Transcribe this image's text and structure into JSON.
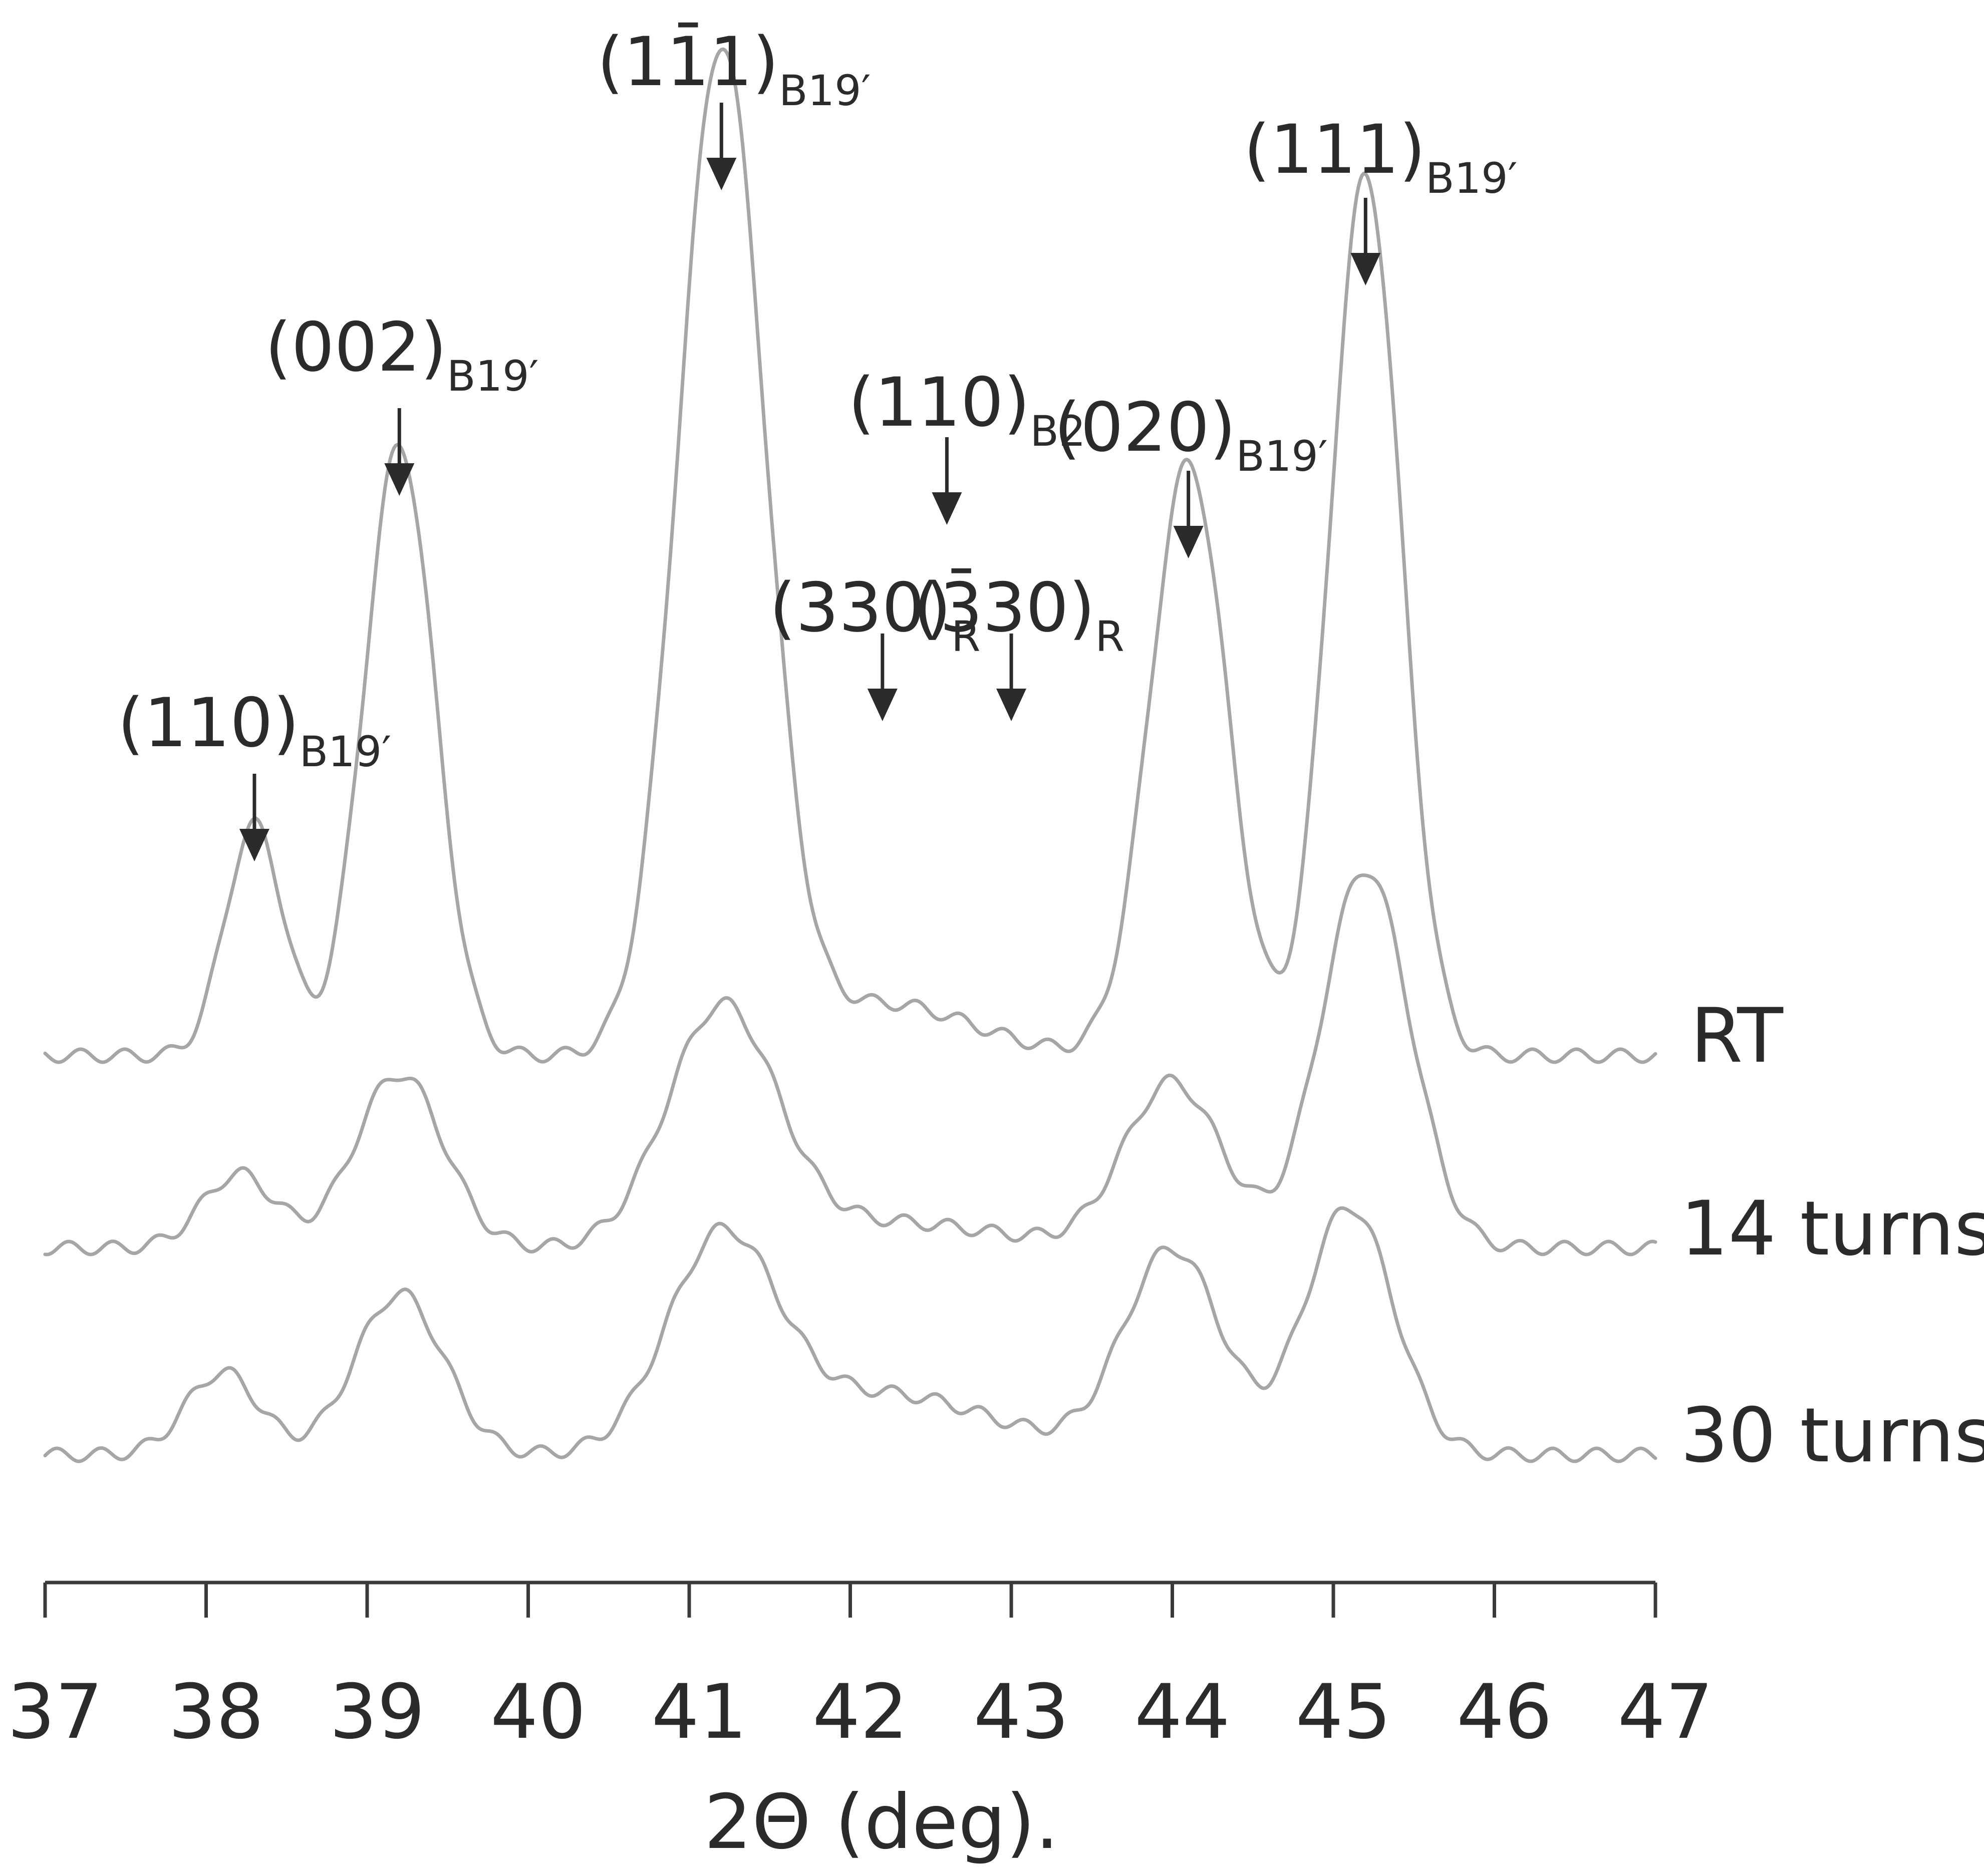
{
  "chart_data": {
    "type": "line",
    "title": "",
    "xlabel": "2Θ (deg).",
    "ylabel": "",
    "xlim": [
      37,
      47
    ],
    "x_ticks": [
      "37",
      "38",
      "39",
      "40",
      "41",
      "42",
      "43",
      "44",
      "45",
      "46",
      "47"
    ],
    "grid": false,
    "colors": {
      "curve": "#a6a6a6",
      "text": "#2b2b2b",
      "axis": "#3a3a3a"
    },
    "series": [
      {
        "name": "RT",
        "peaks": [
          {
            "x": 38.3,
            "height": 0.53
          },
          {
            "x": 39.2,
            "height": 1.4
          },
          {
            "x": 41.2,
            "height": 2.3
          },
          {
            "x": 42.2,
            "height": 0.12
          },
          {
            "x": 44.1,
            "height": 1.36
          },
          {
            "x": 45.2,
            "height": 2.02
          }
        ]
      },
      {
        "name": "14 turns",
        "peaks": [
          {
            "x": 38.2,
            "height": 0.17
          },
          {
            "x": 39.2,
            "height": 0.4
          },
          {
            "x": 41.2,
            "height": 0.54
          },
          {
            "x": 42.2,
            "height": 0.06
          },
          {
            "x": 44.0,
            "height": 0.38
          },
          {
            "x": 45.2,
            "height": 0.87
          }
        ]
      },
      {
        "name": "30 turns",
        "peaks": [
          {
            "x": 38.1,
            "height": 0.19
          },
          {
            "x": 39.2,
            "height": 0.37
          },
          {
            "x": 41.2,
            "height": 0.47
          },
          {
            "x": 42.2,
            "height": 0.14
          },
          {
            "x": 44.0,
            "height": 0.47
          },
          {
            "x": 45.1,
            "height": 0.57
          }
        ]
      }
    ],
    "annotations": [
      {
        "main": "(110)",
        "sub": "B19′",
        "x": 38.3
      },
      {
        "main": "(002)",
        "sub": "B19′",
        "x": 39.2
      },
      {
        "main": "(11̄1)",
        "sub": "B19′",
        "x": 41.2
      },
      {
        "main": "(110)",
        "sub": "B2",
        "x": 42.6
      },
      {
        "main": "(330)",
        "sub": "R",
        "x": 42.2
      },
      {
        "main": "(3̄30)",
        "sub": "R",
        "x": 43.0
      },
      {
        "main": "(020)",
        "sub": "B19′",
        "x": 44.1
      },
      {
        "main": "(111)",
        "sub": "B19′",
        "x": 45.2
      }
    ]
  }
}
